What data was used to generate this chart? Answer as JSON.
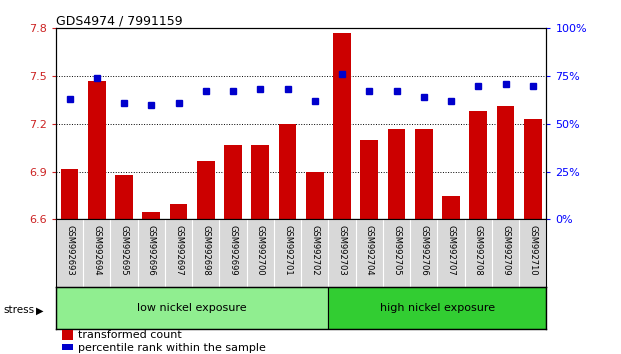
{
  "title": "GDS4974 / 7991159",
  "categories": [
    "GSM992693",
    "GSM992694",
    "GSM992695",
    "GSM992696",
    "GSM992697",
    "GSM992698",
    "GSM992699",
    "GSM992700",
    "GSM992701",
    "GSM992702",
    "GSM992703",
    "GSM992704",
    "GSM992705",
    "GSM992706",
    "GSM992707",
    "GSM992708",
    "GSM992709",
    "GSM992710"
  ],
  "red_values": [
    6.92,
    7.47,
    6.88,
    6.65,
    6.7,
    6.97,
    7.07,
    7.07,
    7.2,
    6.9,
    7.77,
    7.1,
    7.17,
    7.17,
    6.75,
    7.28,
    7.31,
    7.23
  ],
  "blue_values": [
    63,
    74,
    61,
    60,
    61,
    67,
    67,
    68,
    68,
    62,
    76,
    67,
    67,
    64,
    62,
    70,
    71,
    70
  ],
  "ylim_left": [
    6.6,
    7.8
  ],
  "ylim_right": [
    0,
    100
  ],
  "yticks_left": [
    6.6,
    6.9,
    7.2,
    7.5,
    7.8
  ],
  "yticks_right": [
    0,
    25,
    50,
    75,
    100
  ],
  "ytick_labels_right": [
    "0%",
    "25%",
    "50%",
    "75%",
    "100%"
  ],
  "group1_label": "low nickel exposure",
  "group2_label": "high nickel exposure",
  "group1_count": 10,
  "stress_label": "stress",
  "bar_color": "#cc0000",
  "dot_color": "#0000cc",
  "xtick_bg": "#d8d8d8",
  "group1_color": "#90ee90",
  "group2_color": "#32cd32",
  "legend_bar": "transformed count",
  "legend_dot": "percentile rank within the sample",
  "title_fontsize": 9,
  "axis_fontsize": 8,
  "legend_fontsize": 8
}
